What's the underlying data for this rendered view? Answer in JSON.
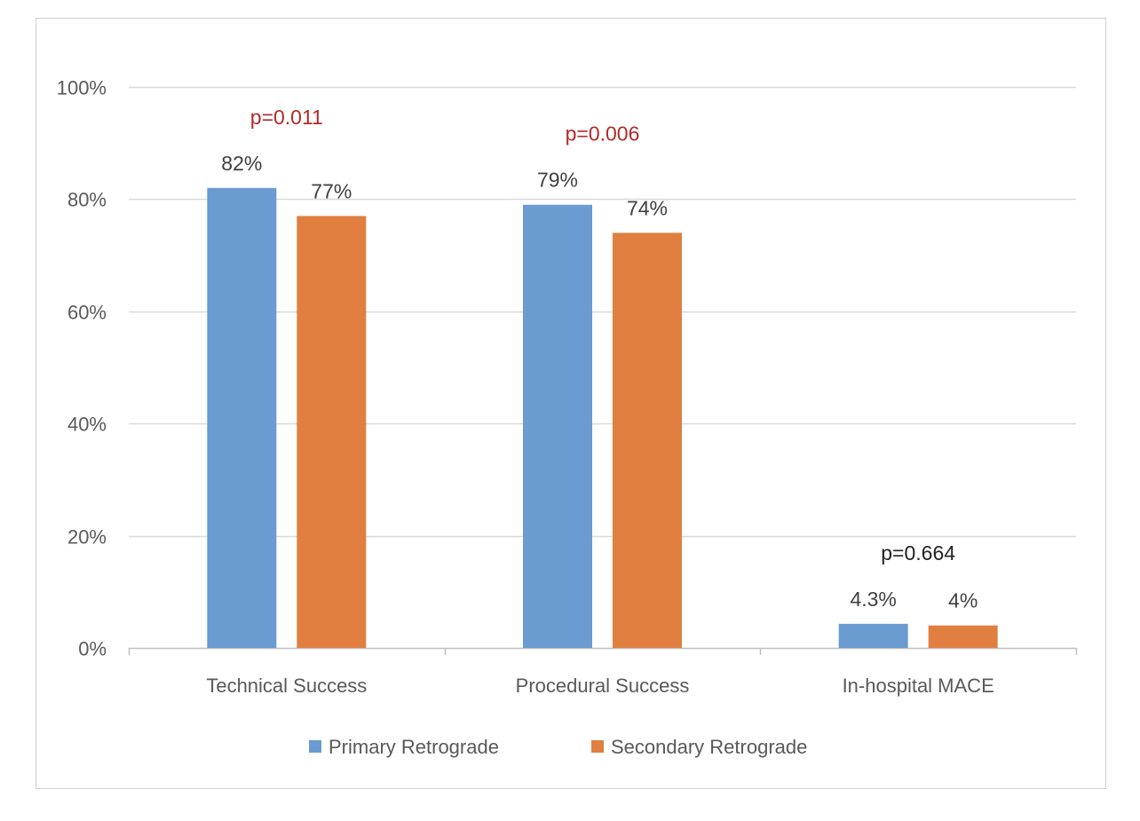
{
  "chart_data": {
    "type": "bar",
    "title": "",
    "xlabel": "",
    "ylabel": "",
    "ylim": [
      0,
      100
    ],
    "y_ticks": [
      "0%",
      "20%",
      "40%",
      "60%",
      "80%",
      "100%"
    ],
    "y_tick_values": [
      0,
      20,
      40,
      60,
      80,
      100
    ],
    "grid": true,
    "legend_position": "bottom",
    "categories": [
      "Technical Success",
      "Procedural Success",
      "In-hospital MACE"
    ],
    "series": [
      {
        "name": "Primary Retrograde",
        "color": "#6a9bd1",
        "values": [
          82,
          79,
          4.3
        ],
        "labels": [
          "82%",
          "79%",
          "4.3%"
        ]
      },
      {
        "name": "Secondary Retrograde",
        "color": "#e07f40",
        "values": [
          77,
          74,
          4
        ],
        "labels": [
          "77%",
          "74%",
          "4%"
        ]
      }
    ],
    "annotations": [
      {
        "text": "p=0.011",
        "color": "#b22a2a"
      },
      {
        "text": "p=0.006",
        "color": "#b22a2a"
      },
      {
        "text": "p=0.664",
        "color": "#222222"
      }
    ]
  }
}
